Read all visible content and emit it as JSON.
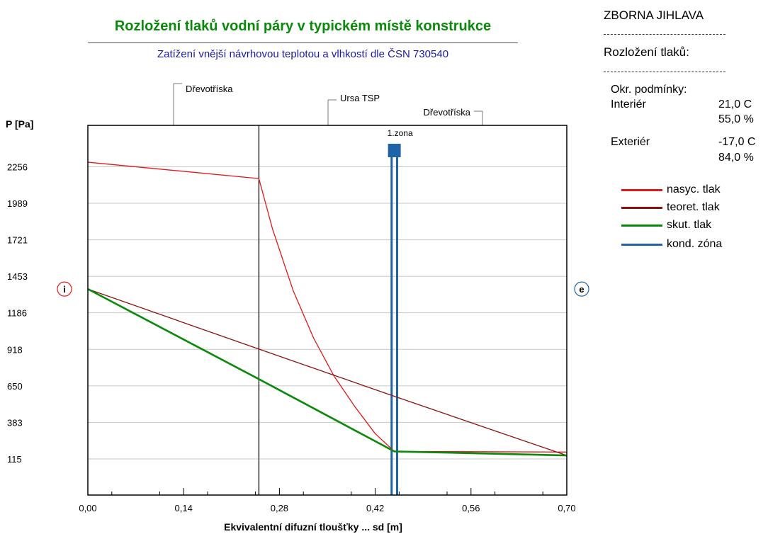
{
  "header": {
    "title": "Rozložení tlaků vodní páry v typickém místě konstrukce",
    "subtitle": "Zatížení vnější návrhovou teplotou a vlhkostí dle ČSN 730540"
  },
  "side": {
    "heading": "ZBORNA JIHLAVA",
    "section": "Rozložení tlaků:",
    "conditions_label": "Okr. podmínky:",
    "interior_label": "Interiér",
    "interior_temp": "21,0 C",
    "interior_rh": "55,0 %",
    "exterior_label": "Exteriér",
    "exterior_temp": "-17,0 C",
    "exterior_rh": "84,0 %"
  },
  "legend": [
    {
      "label": "nasyc. tlak",
      "color": "#e01818"
    },
    {
      "label": "teoret. tlak",
      "color": "#8b1010"
    },
    {
      "label": "skut. tlak",
      "color": "#0a8a0a"
    },
    {
      "label": "kond. zóna",
      "color": "#1e64a6"
    }
  ],
  "chart_data": {
    "type": "line",
    "xlabel": "Ekvivalentní difuzní tloušťky ... sd [m]",
    "ylabel": "P [Pa]",
    "xlim": [
      0,
      0.7
    ],
    "ylim": [
      -150,
      2560
    ],
    "x_ticks": [
      "0,00",
      "0,14",
      "0,28",
      "0,42",
      "0,56",
      "0,70"
    ],
    "y_ticks": [
      "2256",
      "1989",
      "1721",
      "1453",
      "1186",
      "918",
      "650",
      "383",
      "115"
    ],
    "layers": [
      {
        "name": "Dřevotříska",
        "x_from": 0.0,
        "x_to": 0.25
      },
      {
        "name": "Ursa TSP",
        "x_from": 0.25,
        "x_to": 0.45
      },
      {
        "name": "Dřevotříska",
        "x_from": 0.45,
        "x_to": 0.7
      }
    ],
    "interior_marker": "i",
    "exterior_marker": "e",
    "zone_label": "1.zona",
    "condensation_zone": [
      0.444,
      0.452
    ],
    "series": [
      {
        "name": "nasyc. tlak",
        "color": "#e01818",
        "points": [
          [
            0.0,
            2290
          ],
          [
            0.25,
            2170
          ],
          [
            0.27,
            1800
          ],
          [
            0.3,
            1350
          ],
          [
            0.33,
            1000
          ],
          [
            0.36,
            720
          ],
          [
            0.39,
            500
          ],
          [
            0.42,
            300
          ],
          [
            0.448,
            170
          ],
          [
            0.7,
            165
          ]
        ]
      },
      {
        "name": "teoret. tlak",
        "color": "#8b1010",
        "points": [
          [
            0.0,
            1360
          ],
          [
            0.25,
            920
          ],
          [
            0.45,
            570
          ],
          [
            0.7,
            140
          ]
        ]
      },
      {
        "name": "skut. tlak",
        "color": "#0a8a0a",
        "points": [
          [
            0.0,
            1360
          ],
          [
            0.25,
            700
          ],
          [
            0.448,
            170
          ],
          [
            0.7,
            140
          ]
        ]
      }
    ]
  }
}
